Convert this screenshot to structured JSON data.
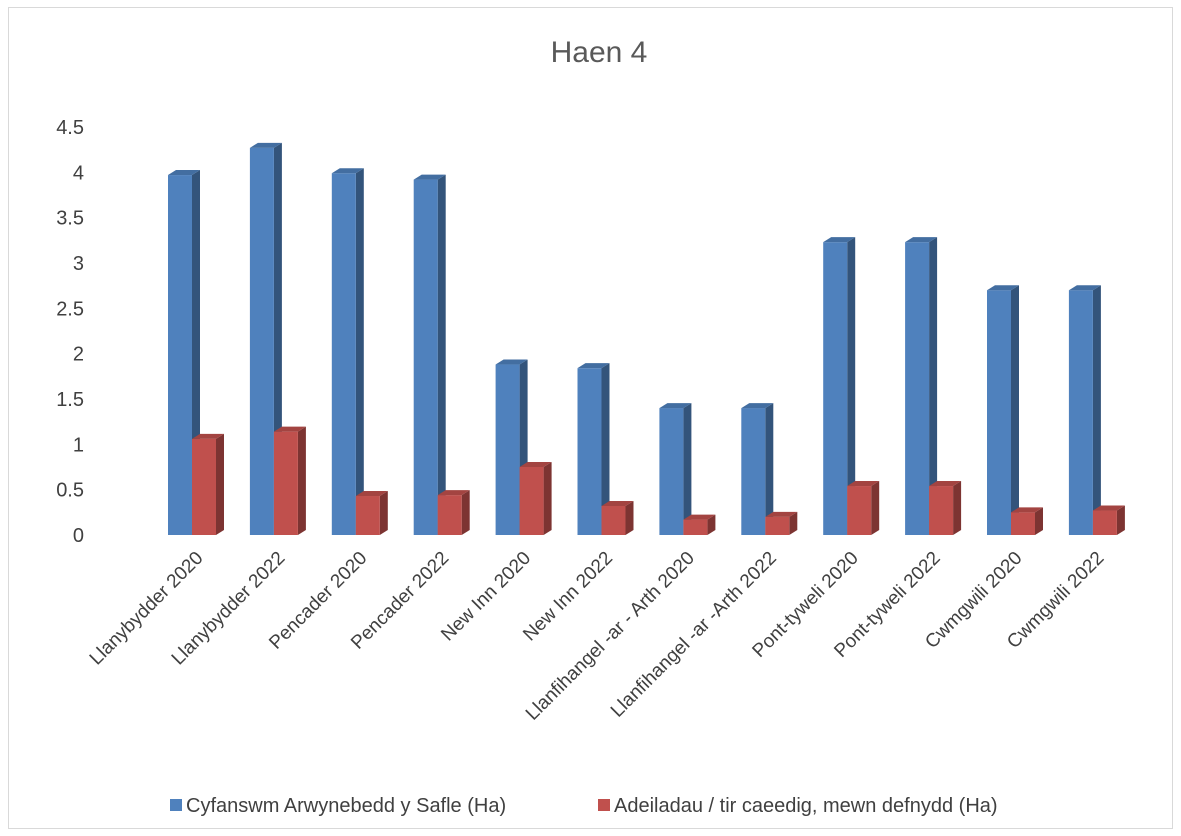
{
  "chart_data": {
    "type": "bar",
    "title": "Haen 4",
    "categories": [
      "Llanybydder 2020",
      "Llanybydder 2022",
      "Pencader 2020",
      "Pencader 2022",
      "New Inn 2020",
      "New Inn 2022",
      "Llanfihangel -ar - Arth 2020",
      "Llanfihangel -ar -Arth 2022",
      "Pont-tyweli  2020",
      "Pont-tyweli  2022",
      "Cwmgwili 2020",
      "Cwmgwili 2022"
    ],
    "series": [
      {
        "name": "Cyfanswm Arwynebedd y Safle (Ha)",
        "color": "#4f81bd",
        "values": [
          3.97,
          4.27,
          3.99,
          3.92,
          1.88,
          1.84,
          1.4,
          1.4,
          3.23,
          3.23,
          2.7,
          2.7
        ]
      },
      {
        "name": "Adeiladau / tir caeedig, mewn defnydd (Ha)",
        "color": "#c0504d",
        "values": [
          1.06,
          1.14,
          0.43,
          0.44,
          0.75,
          0.32,
          0.17,
          0.2,
          0.54,
          0.54,
          0.25,
          0.27
        ]
      }
    ],
    "yticks": [
      "0",
      "0.5",
      "1",
      "1.5",
      "2",
      "2.5",
      "3",
      "3.5",
      "4",
      "4.5"
    ],
    "ylim": [
      0,
      4.5
    ],
    "grid": false,
    "legend_position": "bottom",
    "bar_style": "3d"
  }
}
